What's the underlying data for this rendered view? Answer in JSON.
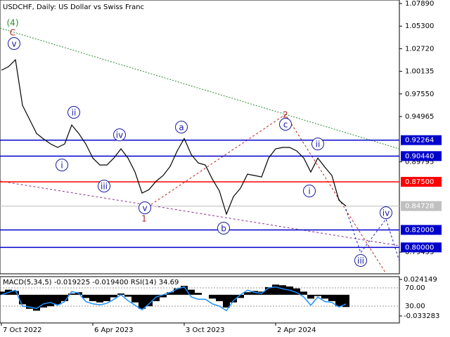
{
  "chart_data": [
    {
      "type": "line",
      "title": "USDCHF, Daily:  US Dollar vs Swiss Franc",
      "color": "#000000",
      "categories": [
        "7 Oct 2022",
        null,
        null,
        null,
        null,
        null,
        null,
        null,
        null,
        null,
        null,
        null,
        null,
        "6 Apr 2023",
        null,
        null,
        null,
        null,
        null,
        null,
        null,
        null,
        null,
        null,
        null,
        null,
        "3 Oct 2023",
        null,
        null,
        null,
        null,
        null,
        null,
        null,
        null,
        null,
        null,
        null,
        null,
        "2 Apr 2024",
        null,
        null,
        null,
        null,
        null,
        null,
        null,
        null,
        null,
        null
      ],
      "values": [
        1.0026,
        1.0066,
        1.0146,
        0.9624,
        0.9464,
        0.9303,
        0.9239,
        0.9183,
        0.9143,
        0.9183,
        0.94,
        0.9303,
        0.9183,
        0.9022,
        0.8942,
        0.8942,
        0.9022,
        0.9127,
        0.9022,
        0.8862,
        0.8621,
        0.8661,
        0.8757,
        0.8822,
        0.8926,
        0.9103,
        0.9245,
        0.9062,
        0.8966,
        0.8942,
        0.8781,
        0.8645,
        0.838,
        0.8581,
        0.8677,
        0.8838,
        0.8822,
        0.8805,
        0.9022,
        0.9127,
        0.9143,
        0.9143,
        0.9103,
        0.9022,
        0.8862,
        0.9022,
        0.8918,
        0.8822,
        0.854,
        0.84728
      ],
      "ylim": [
        0.7714,
        1.0829
      ],
      "yticks": [
        {
          "value": 1.0789,
          "label": "1.07890"
        },
        {
          "value": 1.053,
          "label": "1.05300"
        },
        {
          "value": 1.0272,
          "label": "1.02720"
        },
        1.00135,
        {
          "value": 0.9755,
          "label": "0.97550"
        },
        0.94965,
        0.89795,
        0.79455
      ],
      "levels": [
        {
          "value": 0.92264,
          "label": "0.92264",
          "color": "#0000cd"
        },
        {
          "value": 0.9044,
          "label": "0.90440",
          "color": "#0000cd"
        },
        {
          "value": 0.875,
          "label": "0.87500",
          "color": "#ff0000"
        },
        {
          "value": 0.84728,
          "label": "0.84728",
          "color": "#c0c0c0"
        },
        {
          "value": 0.82,
          "label": "0.82000",
          "color": "#0000cd"
        },
        {
          "value": 0.8,
          "label": "0.80000",
          "color": "#0000cd"
        }
      ],
      "annotations": [
        {
          "text": "(4)",
          "color": "#2e8b2e",
          "circled": false
        },
        {
          "text": "C",
          "color": "#a52a2a",
          "circled": false
        },
        {
          "text": "v",
          "color": "#1a1aa0",
          "circled": true
        },
        {
          "text": "ii",
          "color": "#1a1aa0",
          "circled": true
        },
        {
          "text": "i",
          "color": "#1a1aa0",
          "circled": true
        },
        {
          "text": "iv",
          "color": "#1a1aa0",
          "circled": true
        },
        {
          "text": "iii",
          "color": "#1a1aa0",
          "circled": true
        },
        {
          "text": "v",
          "color": "#1a1aa0",
          "circled": true
        },
        {
          "text": "1",
          "color": "#a52a2a",
          "circled": false
        },
        {
          "text": "a",
          "color": "#1a1aa0",
          "circled": true
        },
        {
          "text": "b",
          "color": "#1a1aa0",
          "circled": true
        },
        {
          "text": "c",
          "color": "#1a1aa0",
          "circled": true
        },
        {
          "text": "2",
          "color": "#a52a2a",
          "circled": false
        },
        {
          "text": "ii",
          "color": "#1a1aa0",
          "circled": true
        },
        {
          "text": "i",
          "color": "#1a1aa0",
          "circled": true
        },
        {
          "text": "iii",
          "color": "#1a1aa0",
          "circled": true
        },
        {
          "text": "iv",
          "color": "#1a1aa0",
          "circled": true
        }
      ]
    },
    {
      "type": "bar",
      "title": "MACD(5,34,5) -0.019225 -0.019400 RSI(14) 34.69",
      "color": "#000000",
      "values": [
        0.005,
        0.008,
        0.006,
        -0.015,
        -0.022,
        -0.025,
        -0.02,
        -0.018,
        -0.015,
        -0.01,
        0.002,
        0.004,
        -0.005,
        -0.01,
        -0.012,
        -0.01,
        -0.004,
        0.002,
        -0.003,
        -0.012,
        -0.022,
        -0.018,
        -0.01,
        -0.004,
        0.004,
        0.01,
        0.014,
        0.008,
        0.003,
        0,
        -0.006,
        -0.01,
        -0.02,
        -0.012,
        -0.005,
        0.004,
        0.006,
        0.005,
        0.012,
        0.016,
        0.015,
        0.013,
        0.01,
        0.005,
        -0.006,
        -0.002,
        -0.006,
        -0.01,
        -0.018,
        -0.019225
      ],
      "ylim": [
        -0.033283,
        0.024149
      ],
      "yticks": [
        0.024149,
        -0.033283
      ],
      "series": [
        {
          "name": "RSI(14)",
          "color": "#1e90ff",
          "axis": "y2",
          "values": [
            55,
            60,
            65,
            30,
            28,
            25,
            35,
            38,
            32,
            40,
            62,
            58,
            40,
            35,
            33,
            36,
            45,
            55,
            42,
            32,
            22,
            35,
            50,
            55,
            60,
            68,
            72,
            50,
            45,
            45,
            35,
            30,
            20,
            42,
            55,
            65,
            60,
            58,
            70,
            72,
            68,
            65,
            60,
            50,
            32,
            50,
            40,
            38,
            28,
            34.69
          ]
        }
      ],
      "y2lim": [
        8.5,
        88.5
      ],
      "y2ticks": [
        {
          "value": 70,
          "label": "70.00"
        },
        {
          "value": 30,
          "label": "30.00"
        }
      ]
    }
  ]
}
